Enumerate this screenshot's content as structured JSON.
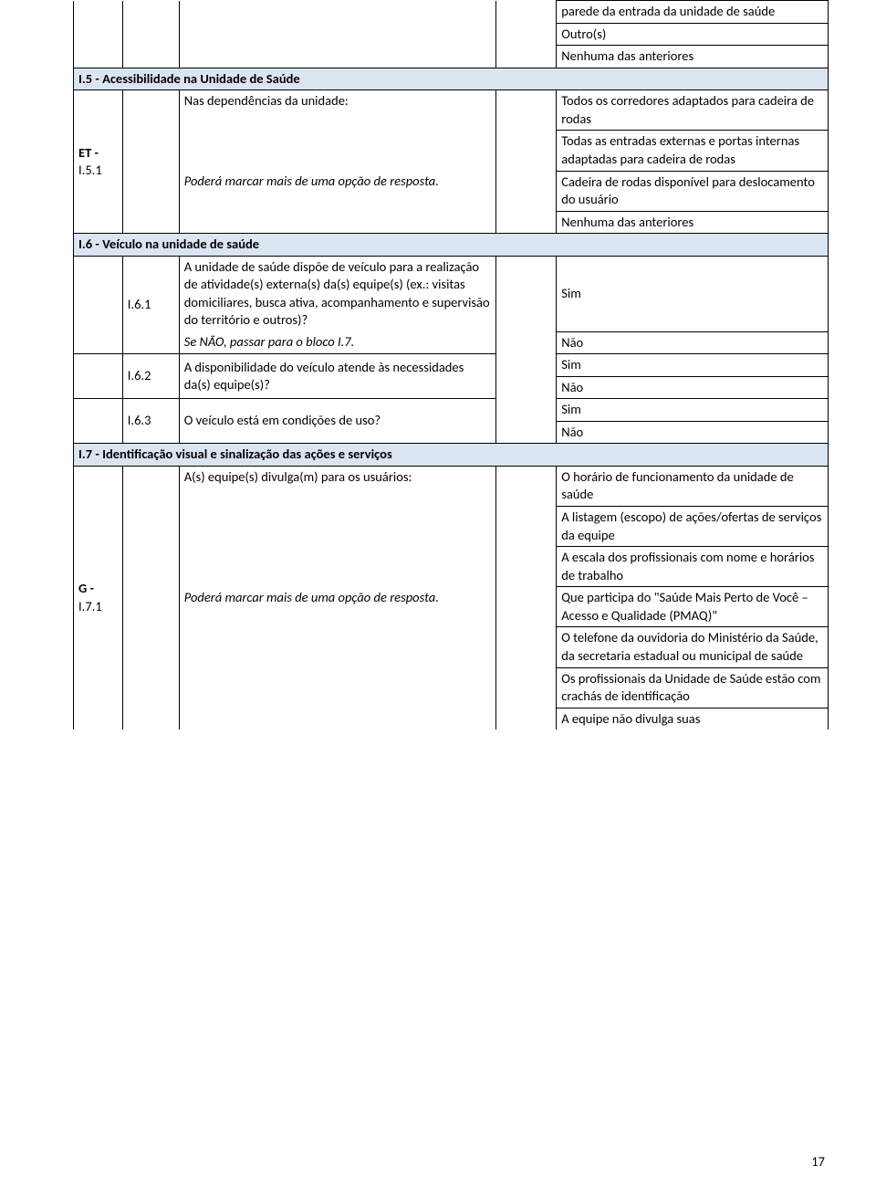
{
  "colors": {
    "section_bg": "#dbe5f1",
    "border": "#000000",
    "page_bg": "#ffffff",
    "text": "#000000"
  },
  "top_answers": {
    "a": "parede da entrada da unidade de saúde",
    "b": "Outro(s)",
    "c": "Nenhuma das anteriores"
  },
  "i5": {
    "header": "I.5 - Acessibilidade na Unidade de Saúde",
    "code_prefix": "ET -",
    "code": "I.5.1",
    "q_line1": "Nas dependências da unidade:",
    "q_line2": "Poderá marcar mais de uma opção de resposta.",
    "opts": {
      "a": "Todos os corredores adaptados para cadeira de rodas",
      "b": "Todas as entradas externas e portas internas adaptadas para cadeira de rodas",
      "c": "Cadeira de rodas disponível para deslocamento do usuário",
      "d": "Nenhuma das anteriores"
    }
  },
  "i6": {
    "header": "I.6 - Veículo na unidade de saúde",
    "r1": {
      "code": "I.6.1",
      "q": "A unidade de saúde dispõe de veículo para a realização de atividade(s) externa(s) da(s) equipe(s) (ex.: visitas domiciliares, busca ativa, acompanhamento e supervisão do território e outros)?",
      "skip": "Se NÃO, passar para o bloco I.7.",
      "yes": "Sim",
      "no": "Não"
    },
    "r2": {
      "code": "I.6.2",
      "q": "A disponibilidade do veículo atende às necessidades da(s) equipe(s)?",
      "yes": "Sim",
      "no": "Não"
    },
    "r3": {
      "code": "I.6.3",
      "q": "O veículo está em condições de uso?",
      "yes": "Sim",
      "no": "Não"
    }
  },
  "i7": {
    "header": "I.7 - Identificação visual e sinalização das ações e serviços",
    "code_prefix": "G -",
    "code": "I.7.1",
    "q_line1": "A(s) equipe(s) divulga(m) para os usuários:",
    "q_line2": "Poderá marcar mais de uma opção de resposta.",
    "opts": {
      "a": "O horário de funcionamento da unidade de saúde",
      "b": "A listagem (escopo) de ações/ofertas de serviços da equipe",
      "c": "A escala dos profissionais com nome e horários de trabalho",
      "d": "Que participa do \"Saúde Mais Perto de Você – Acesso e Qualidade (PMAQ)\"",
      "e": "O telefone da ouvidoria do Ministério da Saúde, da secretaria estadual ou municipal de saúde",
      "f": "Os profissionais da Unidade de Saúde estão com crachás de identificação",
      "g": "A equipe não divulga suas"
    }
  },
  "page_number": "17"
}
